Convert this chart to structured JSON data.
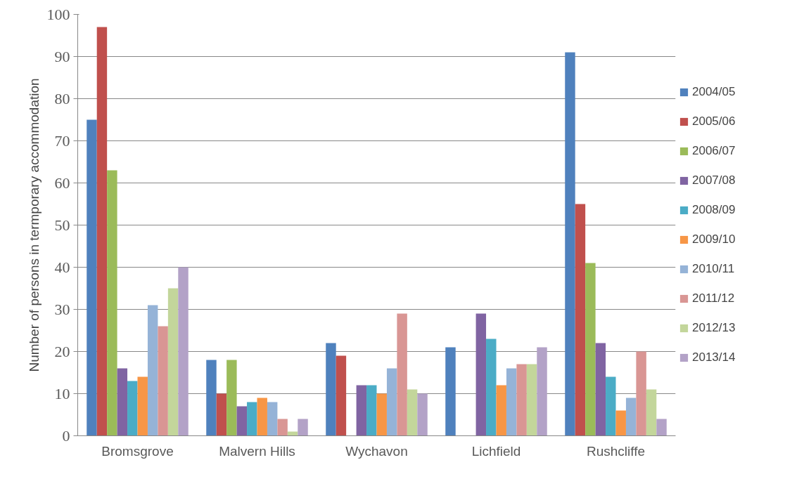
{
  "chart_data": {
    "type": "bar",
    "ylabel": "Number of persons in termporary accommodation",
    "categories": [
      "Bromsgrove",
      "Malvern Hills",
      "Wychavon",
      "Lichfield",
      "Rushcliffe"
    ],
    "series": [
      {
        "name": "2004/05",
        "color": "#4f81bd",
        "values": [
          75,
          18,
          22,
          21,
          91
        ]
      },
      {
        "name": "2005/06",
        "color": "#c0504d",
        "values": [
          97,
          10,
          19,
          0,
          55
        ]
      },
      {
        "name": "2006/07",
        "color": "#9bbb59",
        "values": [
          63,
          18,
          0,
          0,
          41
        ]
      },
      {
        "name": "2007/08",
        "color": "#8064a2",
        "values": [
          16,
          7,
          12,
          29,
          22
        ]
      },
      {
        "name": "2008/09",
        "color": "#4bacc6",
        "values": [
          13,
          8,
          12,
          23,
          14
        ]
      },
      {
        "name": "2009/10",
        "color": "#f79646",
        "values": [
          14,
          9,
          10,
          12,
          6
        ]
      },
      {
        "name": "2010/11",
        "color": "#95b3d7",
        "values": [
          31,
          8,
          16,
          16,
          9
        ]
      },
      {
        "name": "2011/12",
        "color": "#d99694",
        "values": [
          26,
          4,
          29,
          17,
          20
        ]
      },
      {
        "name": "2012/13",
        "color": "#c3d69b",
        "values": [
          35,
          1,
          11,
          17,
          11
        ]
      },
      {
        "name": "2013/14",
        "color": "#b3a2c7",
        "values": [
          40,
          4,
          10,
          21,
          4
        ]
      }
    ],
    "ylim": [
      0,
      100
    ],
    "yticks": [
      0,
      10,
      20,
      30,
      40,
      50,
      60,
      70,
      80,
      90,
      100
    ],
    "grid": "y",
    "legend": "right"
  }
}
